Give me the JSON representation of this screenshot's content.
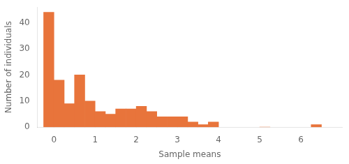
{
  "chart_data": {
    "type": "histogram",
    "bins": [
      -0.25,
      0.0,
      0.25,
      0.5,
      0.75,
      1.0,
      1.25,
      1.5,
      1.75,
      2.0,
      2.25,
      2.5,
      2.75,
      3.0,
      3.25,
      3.5,
      3.75,
      4.0,
      6.25,
      6.5
    ],
    "values": [
      44,
      18,
      9,
      20,
      10,
      6,
      5,
      7,
      7,
      8,
      6,
      4,
      4,
      4,
      2,
      1,
      2,
      0,
      1
    ],
    "color": "#E8743B",
    "xlabel": "Sample means",
    "ylabel": "Number of individuals",
    "xlim": [
      -0.4,
      7.0
    ],
    "ylim": [
      0,
      46
    ],
    "xticks": [
      0,
      1,
      2,
      3,
      4,
      5,
      6
    ],
    "yticks": [
      0,
      10,
      20,
      30,
      40
    ],
    "grid": false
  }
}
